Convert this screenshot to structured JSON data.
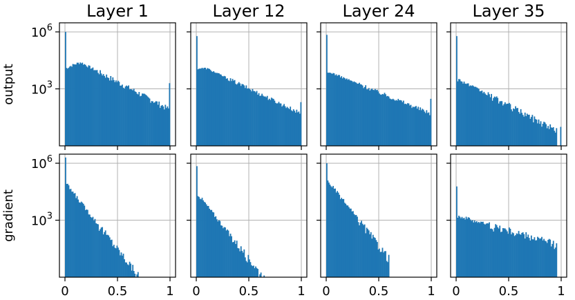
{
  "chart_data": {
    "type": "bar",
    "description_scale": "log-scaled histogram, x from 0 to 1",
    "columns": [
      "Layer 1",
      "Layer 12",
      "Layer 24",
      "Layer 35"
    ],
    "rows": [
      "output",
      "gradient"
    ],
    "xlim": [
      0,
      1
    ],
    "xticks": [
      0,
      0.5,
      1
    ],
    "xtick_labels": [
      "0",
      "0.5",
      "1"
    ],
    "yscale": "log",
    "ylim": [
      1,
      3000000
    ],
    "yticks": [
      1000,
      1000000
    ],
    "ytick_labels": [
      "10^3",
      "10^6"
    ],
    "bin_width": 0.01,
    "bar_color": "#1f77b4",
    "grid": true,
    "panels": [
      {
        "row": "output",
        "column": "Layer 1",
        "shape": {
          "base": 11000,
          "peak_at": 0.1,
          "peak": 25000,
          "decay_from": 0.15,
          "end": 80,
          "spike0": 1000000,
          "spike1": 2000,
          "noise": 0.35
        }
      },
      {
        "row": "output",
        "column": "Layer 12",
        "shape": {
          "base": 12000,
          "peak_at": 0.05,
          "peak": 12000,
          "decay_from": 0.1,
          "end": 50,
          "spike0": 600000,
          "spike1": 200,
          "noise": 0.25
        }
      },
      {
        "row": "output",
        "column": "Layer 24",
        "shape": {
          "base": 7000,
          "peak_at": 0.03,
          "peak": 7000,
          "decay_from": 0.05,
          "end": 50,
          "spike0": 700000,
          "spike1": 300,
          "noise": 0.25
        }
      },
      {
        "row": "output",
        "column": "Layer 35",
        "shape": {
          "base": 3000,
          "peak_at": 0.02,
          "peak": 3000,
          "decay_from": 0.03,
          "end": 5,
          "spike0": 600000,
          "spike1": 10,
          "noise": 0.4,
          "cutoff": 0.96
        }
      },
      {
        "row": "gradient",
        "column": "Layer 1",
        "shape": {
          "base": 100000,
          "peak_at": 0.0,
          "peak": 100000,
          "decay_from": 0.0,
          "end": 1,
          "spike0": 2000000,
          "spike1": 5,
          "noise": 0.5,
          "steep": true,
          "cutoff": 0.7
        }
      },
      {
        "row": "gradient",
        "column": "Layer 12",
        "shape": {
          "base": 30000,
          "peak_at": 0.0,
          "peak": 30000,
          "decay_from": 0.0,
          "end": 1,
          "spike0": 700000,
          "spike1": 5,
          "noise": 0.5,
          "steep": true,
          "cutoff": 0.73
        }
      },
      {
        "row": "gradient",
        "column": "Layer 24",
        "shape": {
          "base": 150000,
          "peak_at": 0.0,
          "peak": 150000,
          "decay_from": 0.0,
          "end": 1,
          "spike0": 1000000,
          "spike1": 5,
          "noise": 0.5,
          "steep": true,
          "cutoff": 0.6
        }
      },
      {
        "row": "gradient",
        "column": "Layer 35",
        "shape": {
          "base": 1800,
          "peak_at": 0.0,
          "peak": 1800,
          "decay_from": 0.0,
          "end": 40,
          "spike0": 60000,
          "spike1": 5,
          "noise": 0.5,
          "flat": true,
          "cutoff": 0.96
        }
      }
    ]
  }
}
